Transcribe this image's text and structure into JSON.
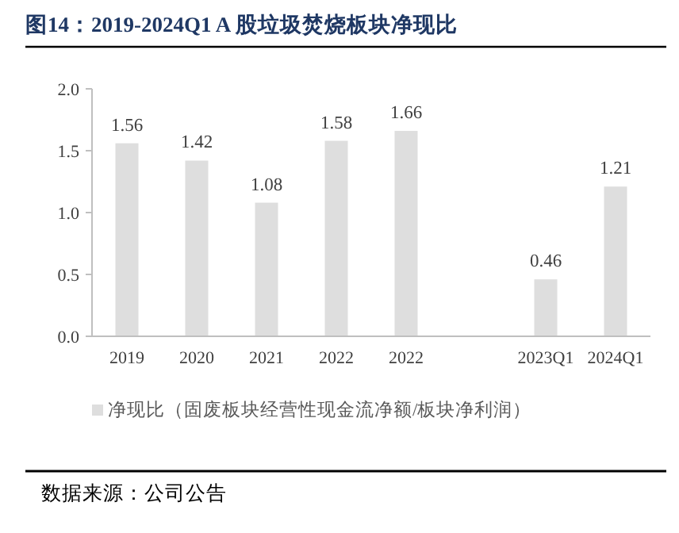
{
  "chart_data": {
    "type": "bar",
    "title": "图14：2019-2024Q1 A 股垃圾焚烧板块净现比",
    "categories": [
      "2019",
      "2020",
      "2021",
      "2022",
      "2022",
      null,
      "2023Q1",
      "2024Q1"
    ],
    "series": [
      {
        "name": "净现比（固废板块经营性现金流净额/板块净利润）",
        "color": "#dedede",
        "values": [
          1.56,
          1.42,
          1.08,
          1.58,
          1.66,
          null,
          0.46,
          1.21
        ]
      }
    ],
    "ylim": [
      0,
      2.0
    ],
    "yticks": [
      {
        "value": 0,
        "label": "0.0"
      },
      {
        "value": 0.5,
        "label": "0.5"
      },
      {
        "value": 1,
        "label": "1.0"
      },
      {
        "value": 1.5,
        "label": "1.5"
      },
      {
        "value": 2,
        "label": "2.0"
      }
    ],
    "data_labels": true,
    "legend": "bottom",
    "annotations": [
      "数据来源：公司公告"
    ]
  }
}
